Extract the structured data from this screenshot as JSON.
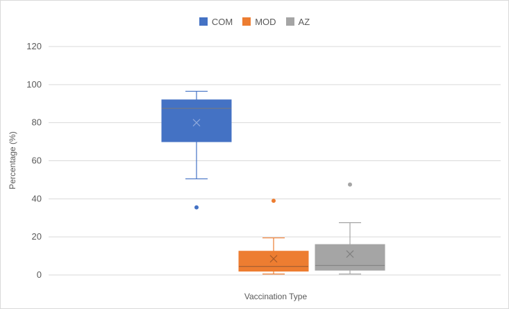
{
  "chart_data": {
    "type": "box",
    "xlabel": "Vaccination Type",
    "ylabel": "Percentage (%)",
    "ylim": [
      0,
      120
    ],
    "yticks": [
      "0",
      "20",
      "40",
      "60",
      "80",
      "100",
      "120"
    ],
    "grid": true,
    "legend_position": "top",
    "series": [
      {
        "name": "COM",
        "color": "#4472c4",
        "min": 50.5,
        "q1": 70,
        "median": 87.5,
        "q3": 92,
        "max": 96.5,
        "mean": 80,
        "outliers": [
          35.5
        ]
      },
      {
        "name": "MOD",
        "color": "#ed7d31",
        "min": 0.5,
        "q1": 2,
        "median": 4.5,
        "q3": 12.5,
        "max": 19.5,
        "mean": 8.5,
        "outliers": [
          39
        ]
      },
      {
        "name": "AZ",
        "color": "#a5a5a5",
        "min": 0.5,
        "q1": 2.5,
        "median": 5,
        "q3": 16,
        "max": 27.5,
        "mean": 11,
        "outliers": [
          47.5
        ]
      }
    ]
  }
}
